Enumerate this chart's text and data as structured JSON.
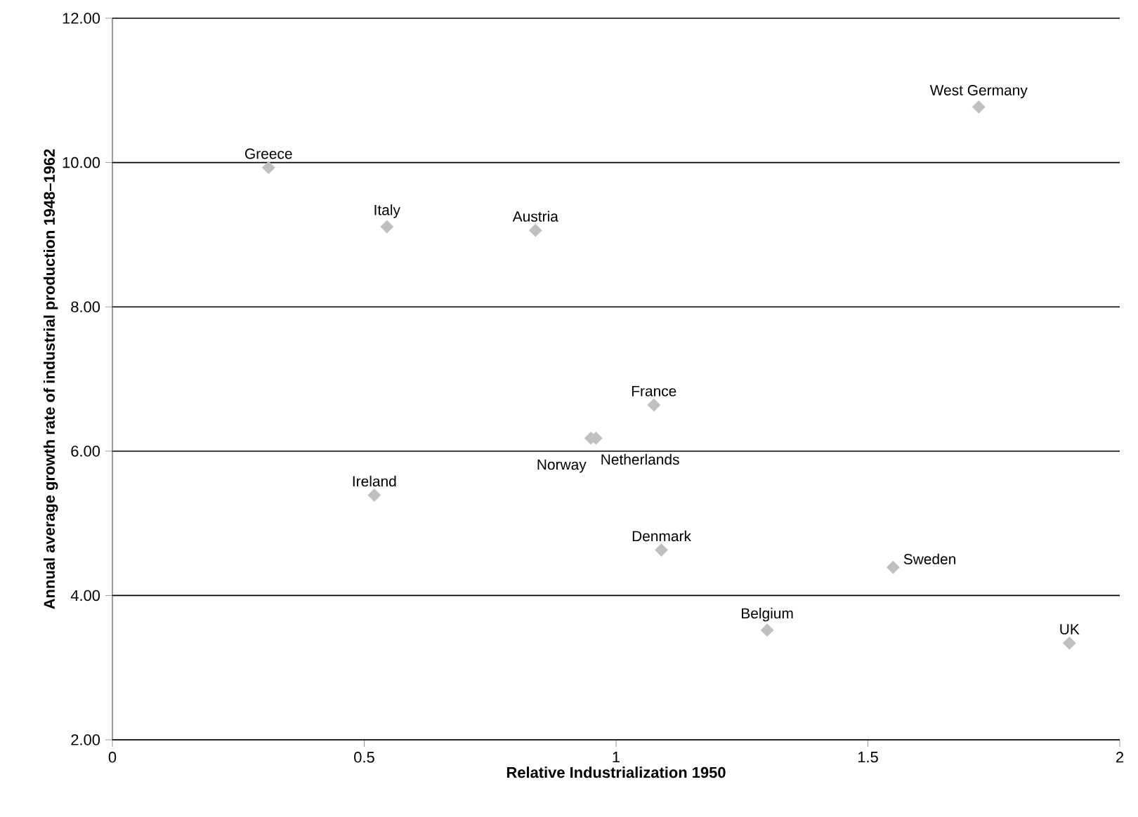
{
  "chart_data": {
    "type": "scatter",
    "xlabel": "Relative Industrialization 1950",
    "ylabel": "Annual average growth rate of industrial production 1948–1962",
    "xlim": [
      0,
      2
    ],
    "xticks": [
      0,
      0.5,
      1,
      1.5,
      2
    ],
    "ylim": [
      2,
      12
    ],
    "yticks": [
      {
        "value": 2,
        "label": "2.00"
      },
      {
        "value": 4,
        "label": "4.00"
      },
      {
        "value": 6,
        "label": "6.00"
      },
      {
        "value": 8,
        "label": "8.00"
      },
      {
        "value": 10,
        "label": "10.00"
      },
      {
        "value": 12,
        "label": "12.00"
      }
    ],
    "grid": "y",
    "legend": false,
    "marker": "diamond",
    "series": [
      {
        "name": "Greece",
        "color": "#c0c0c0",
        "x": [
          0.31
        ],
        "values": [
          9.93
        ]
      },
      {
        "name": "Italy",
        "color": "#c0c0c0",
        "x": [
          0.545
        ],
        "values": [
          9.11
        ]
      },
      {
        "name": "Austria",
        "color": "#c0c0c0",
        "x": [
          0.84
        ],
        "values": [
          9.06
        ]
      },
      {
        "name": "West Germany",
        "color": "#c0c0c0",
        "x": [
          1.72
        ],
        "values": [
          10.77
        ]
      },
      {
        "name": "France",
        "color": "#c0c0c0",
        "x": [
          1.075
        ],
        "values": [
          6.64
        ]
      },
      {
        "name": "Norway",
        "color": "#c0c0c0",
        "x": [
          0.95
        ],
        "values": [
          6.18
        ]
      },
      {
        "name": "Netherlands",
        "color": "#c0c0c0",
        "x": [
          0.96
        ],
        "values": [
          6.18
        ]
      },
      {
        "name": "Ireland",
        "color": "#c0c0c0",
        "x": [
          0.52
        ],
        "values": [
          5.39
        ]
      },
      {
        "name": "Denmark",
        "color": "#c0c0c0",
        "x": [
          1.09
        ],
        "values": [
          4.63
        ]
      },
      {
        "name": "Sweden",
        "color": "#c0c0c0",
        "x": [
          1.55
        ],
        "values": [
          4.39
        ]
      },
      {
        "name": "Belgium",
        "color": "#c0c0c0",
        "x": [
          1.3
        ],
        "values": [
          3.52
        ]
      },
      {
        "name": "UK",
        "color": "#c0c0c0",
        "x": [
          1.9
        ],
        "values": [
          3.34
        ]
      }
    ]
  }
}
